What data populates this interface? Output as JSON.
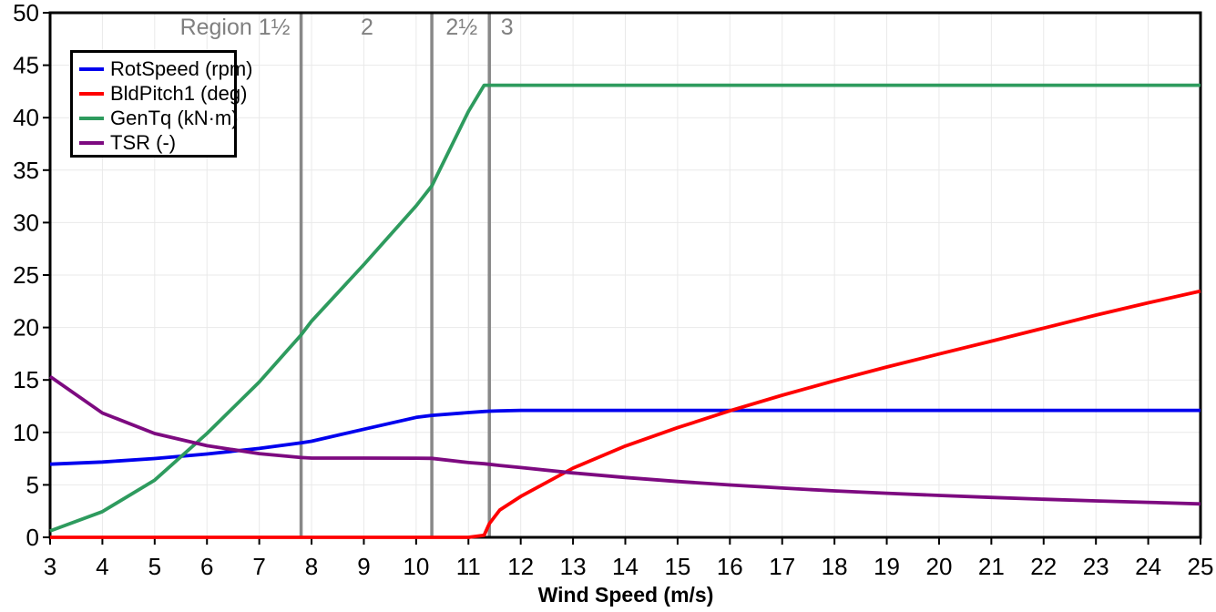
{
  "chart_data": {
    "type": "line",
    "title": "",
    "xlabel": "Wind Speed (m/s)",
    "ylabel": "",
    "xlim": [
      3,
      25
    ],
    "ylim": [
      0,
      50
    ],
    "xticks": [
      3,
      4,
      5,
      6,
      7,
      8,
      9,
      10,
      11,
      12,
      13,
      14,
      15,
      16,
      17,
      18,
      19,
      20,
      21,
      22,
      23,
      24,
      25
    ],
    "yticks": [
      0,
      5,
      10,
      15,
      20,
      25,
      30,
      35,
      40,
      45,
      50
    ],
    "grid": true,
    "legend_position": "upper-left",
    "x": [
      3,
      4,
      5,
      6,
      7,
      7.8,
      8,
      9,
      10,
      10.3,
      11,
      11.3,
      11.4,
      11.6,
      12,
      13,
      14,
      15,
      16,
      17,
      18,
      19,
      20,
      21,
      22,
      23,
      24,
      25
    ],
    "series": [
      {
        "name": "RotSpeed (rpm)",
        "color": "#0000ee",
        "values": [
          6.97,
          7.18,
          7.51,
          7.94,
          8.47,
          9.0,
          9.16,
          10.3,
          11.43,
          11.62,
          11.89,
          12.0,
          12.02,
          12.06,
          12.1,
          12.1,
          12.1,
          12.1,
          12.1,
          12.1,
          12.1,
          12.1,
          12.1,
          12.1,
          12.1,
          12.1,
          12.1,
          12.1
        ]
      },
      {
        "name": "BldPitch1 (deg)",
        "color": "#ff0000",
        "values": [
          0,
          0,
          0,
          0,
          0,
          0,
          0,
          0,
          0,
          0,
          0,
          0.2,
          1.3,
          2.6,
          3.9,
          6.6,
          8.7,
          10.45,
          12.06,
          13.54,
          14.92,
          16.23,
          17.47,
          18.7,
          19.94,
          21.18,
          22.35,
          23.47
        ]
      },
      {
        "name": "GenTq (kN·m)",
        "color": "#2e9b5e",
        "values": [
          0.61,
          2.45,
          5.45,
          9.9,
          14.8,
          19.3,
          20.6,
          26.0,
          31.6,
          33.5,
          40.6,
          43.09,
          43.09,
          43.09,
          43.09,
          43.09,
          43.09,
          43.09,
          43.09,
          43.09,
          43.09,
          43.09,
          43.09,
          43.09,
          43.09,
          43.09,
          43.09,
          43.09
        ]
      },
      {
        "name": "TSR (-)",
        "color": "#7d0a80",
        "values": [
          15.33,
          11.85,
          9.9,
          8.73,
          7.98,
          7.6,
          7.55,
          7.55,
          7.54,
          7.53,
          7.13,
          7.01,
          6.96,
          6.85,
          6.65,
          6.14,
          5.7,
          5.32,
          4.99,
          4.7,
          4.43,
          4.2,
          3.99,
          3.8,
          3.63,
          3.47,
          3.33,
          3.19
        ]
      }
    ],
    "region_boundaries": {
      "x_values": [
        7.8,
        10.3,
        11.4
      ],
      "line_color": "#888888",
      "label_color": "#808080"
    },
    "region_labels": [
      {
        "text": "Region 1½",
        "x": 7.59,
        "anchor": "end"
      },
      {
        "text": "2",
        "x": 9.06,
        "anchor": "middle"
      },
      {
        "text": "2½",
        "x": 10.87,
        "anchor": "middle"
      },
      {
        "text": "3",
        "x": 11.74,
        "anchor": "middle"
      }
    ],
    "colors": {
      "grid": "#e9e9e9",
      "frame": "#000000",
      "tick": "#000000",
      "background": "#ffffff"
    }
  }
}
